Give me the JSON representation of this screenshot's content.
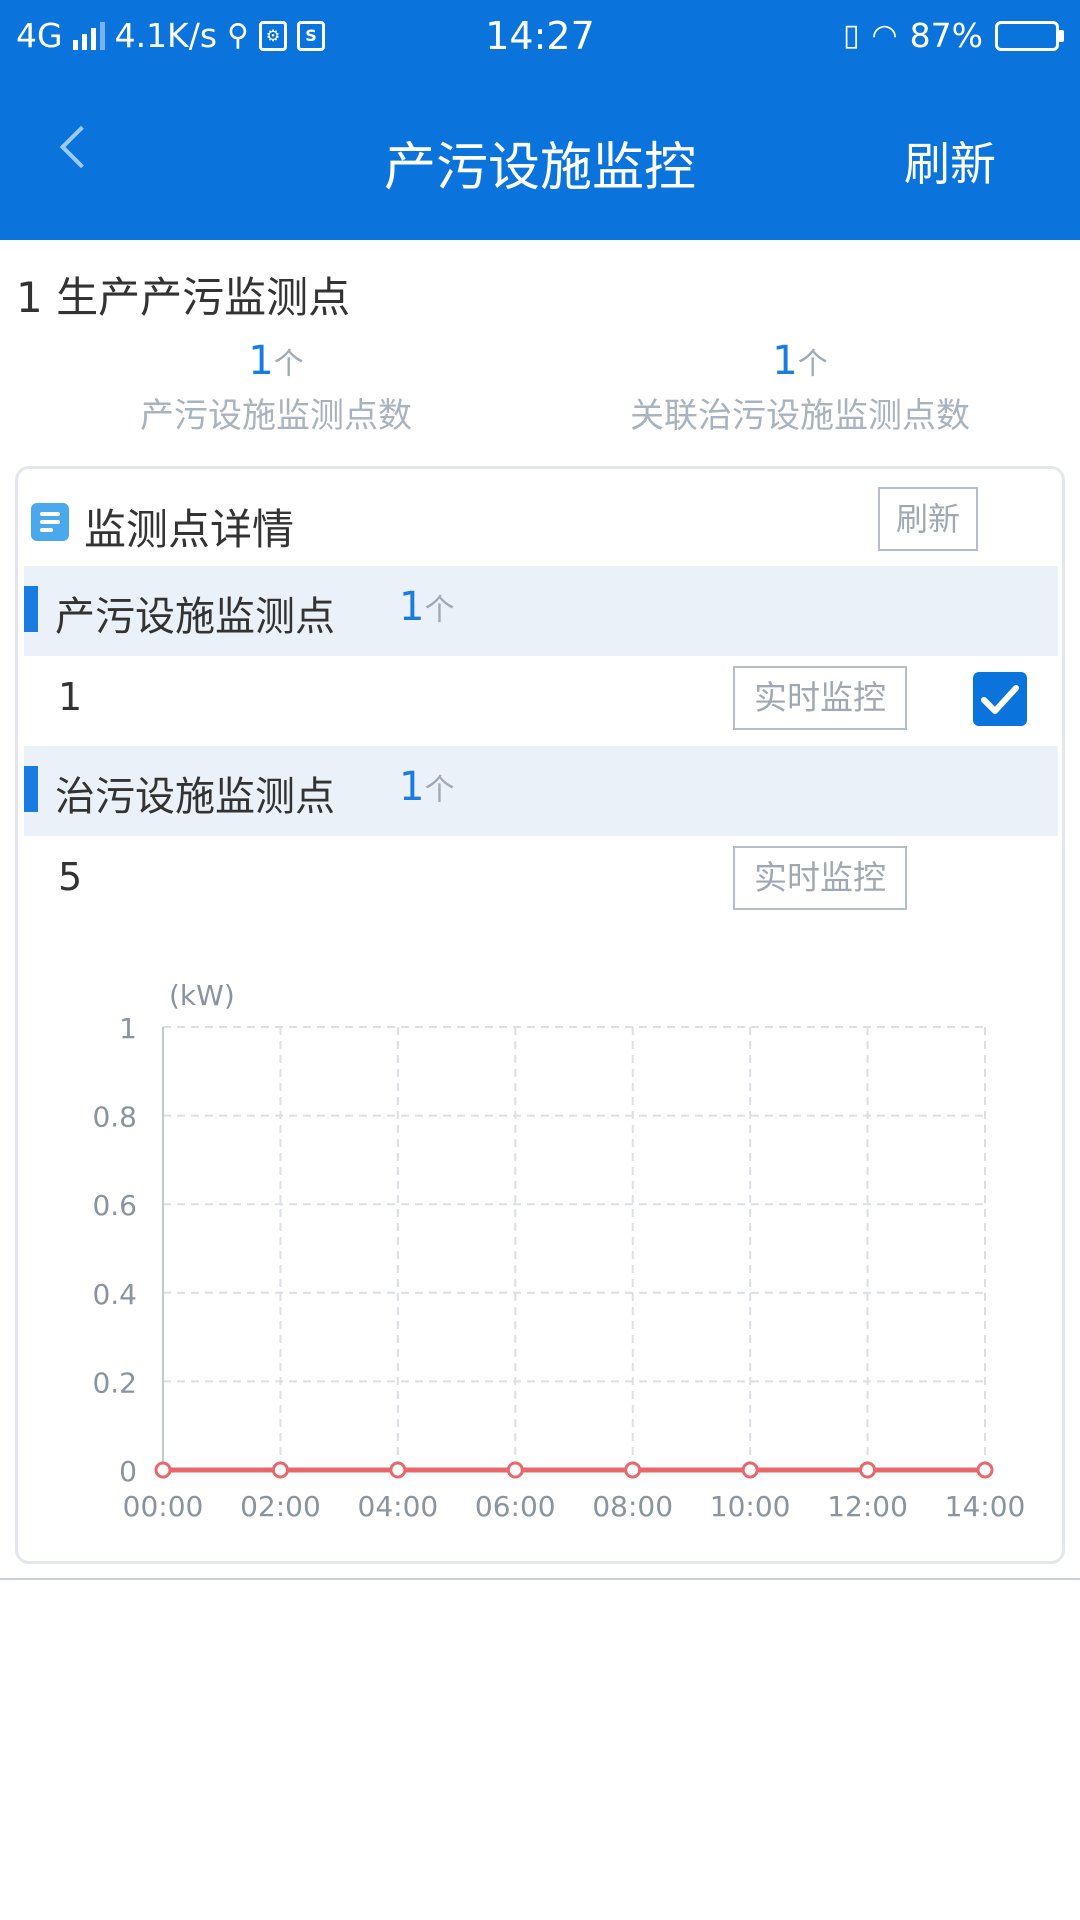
{
  "status_bar": {
    "network": "4G",
    "speed": "4.1K/s",
    "time": "14:27",
    "battery": "87%"
  },
  "header": {
    "title": "产污设施监控",
    "refresh_label": "刷新"
  },
  "section": {
    "title": "1 生产产污监测点",
    "stats": [
      {
        "value": "1",
        "unit": "个",
        "label": "产污设施监测点数"
      },
      {
        "value": "1",
        "unit": "个",
        "label": "关联治污设施监测点数"
      }
    ]
  },
  "card": {
    "title": "监测点详情",
    "refresh_label": "刷新",
    "groups": [
      {
        "name": "产污设施监测点",
        "count": "1",
        "unit": "个",
        "items": [
          {
            "id": "1",
            "action_label": "实时监控",
            "checked": true
          }
        ]
      },
      {
        "name": "治污设施监测点",
        "count": "1",
        "unit": "个",
        "items": [
          {
            "id": "5",
            "action_label": "实时监控"
          }
        ]
      }
    ]
  },
  "chart_data": {
    "type": "line",
    "ylabel": "(kW)",
    "x": [
      "00:00",
      "02:00",
      "04:00",
      "06:00",
      "08:00",
      "10:00",
      "12:00",
      "14:00"
    ],
    "y_ticks": [
      "0",
      "0.2",
      "0.4",
      "0.6",
      "0.8",
      "1"
    ],
    "ylim": [
      0,
      1
    ],
    "grid": true,
    "series": [
      {
        "values": [
          0,
          0,
          0,
          0,
          0,
          0,
          0,
          0
        ],
        "color": "#e8676b"
      }
    ]
  }
}
